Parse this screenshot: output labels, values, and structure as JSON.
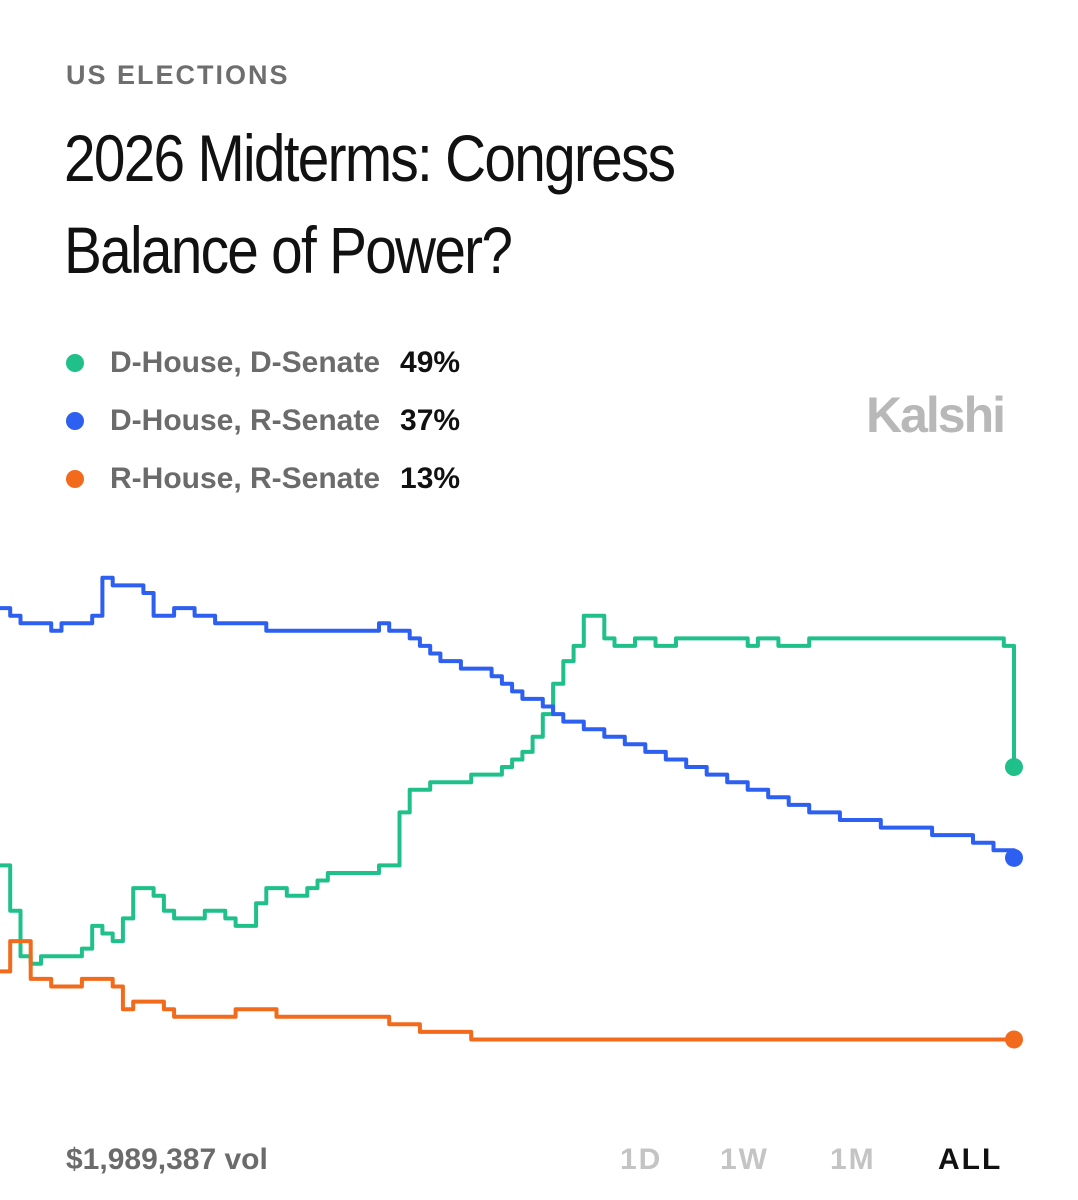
{
  "header": {
    "category": "US ELECTIONS",
    "title": "2026 Midterms: Congress Balance of Power?"
  },
  "brand": {
    "name": "Kalshi"
  },
  "footer": {
    "volume": "$1,989,387 vol",
    "ranges": [
      "1D",
      "1W",
      "1M",
      "ALL"
    ],
    "active_range": "ALL"
  },
  "chart_data": {
    "type": "line",
    "ylim": [
      0,
      100
    ],
    "grid": false,
    "legend": "top-left",
    "x_points": 100,
    "series": [
      {
        "name": "D-House, D-Senate",
        "display_value": "49%",
        "color": "#1fc08a",
        "values": [
          36,
          30,
          24,
          23,
          24,
          24,
          24,
          24,
          25,
          28,
          27,
          26,
          29,
          33,
          33,
          32,
          30,
          29,
          29,
          29,
          30,
          30,
          29,
          28,
          28,
          31,
          33,
          33,
          32,
          32,
          33,
          34,
          35,
          35,
          35,
          35,
          35,
          36,
          36,
          43,
          46,
          46,
          47,
          47,
          47,
          47,
          48,
          48,
          48,
          49,
          50,
          51,
          53,
          56,
          60,
          63,
          65,
          69,
          69,
          66,
          65,
          65,
          66,
          66,
          65,
          65,
          66,
          66,
          66,
          66,
          66,
          66,
          66,
          65,
          66,
          66,
          65,
          65,
          65,
          66,
          66,
          66,
          66,
          66,
          66,
          66,
          66,
          66,
          66,
          66,
          66,
          66,
          66,
          66,
          66,
          66,
          66,
          66,
          65,
          49
        ]
      },
      {
        "name": "D-House, R-Senate",
        "display_value": "37%",
        "color": "#2d5ff0",
        "values": [
          70,
          69,
          68,
          68,
          68,
          67,
          68,
          68,
          68,
          69,
          74,
          73,
          73,
          73,
          72,
          69,
          69,
          70,
          70,
          69,
          69,
          68,
          68,
          68,
          68,
          68,
          67,
          67,
          67,
          67,
          67,
          67,
          67,
          67,
          67,
          67,
          67,
          68,
          67,
          67,
          66,
          65,
          64,
          63,
          63,
          62,
          62,
          62,
          61,
          60,
          59,
          58,
          58,
          57,
          56,
          55,
          55,
          54,
          54,
          53,
          53,
          52,
          52,
          51,
          51,
          50,
          50,
          49,
          49,
          48,
          48,
          47,
          47,
          46,
          46,
          45,
          45,
          44,
          44,
          43,
          43,
          43,
          42,
          42,
          42,
          42,
          41,
          41,
          41,
          41,
          41,
          40,
          40,
          40,
          40,
          39,
          39,
          38,
          38,
          37
        ]
      },
      {
        "name": "R-House, R-Senate",
        "display_value": "13%",
        "color": "#f26a1b",
        "values": [
          22,
          26,
          26,
          21,
          21,
          20,
          20,
          20,
          21,
          21,
          21,
          20,
          17,
          18,
          18,
          18,
          17,
          16,
          16,
          16,
          16,
          16,
          16,
          17,
          17,
          17,
          17,
          16,
          16,
          16,
          16,
          16,
          16,
          16,
          16,
          16,
          16,
          16,
          15,
          15,
          15,
          14,
          14,
          14,
          14,
          14,
          13,
          13,
          13,
          13,
          13,
          13,
          13,
          13,
          13,
          13,
          13,
          13,
          13,
          13,
          13,
          13,
          13,
          13,
          13,
          13,
          13,
          13,
          13,
          13,
          13,
          13,
          13,
          13,
          13,
          13,
          13,
          13,
          13,
          13,
          13,
          13,
          13,
          13,
          13,
          13,
          13,
          13,
          13,
          13,
          13,
          13,
          13,
          13,
          13,
          13,
          13,
          13,
          13,
          13
        ]
      }
    ]
  }
}
